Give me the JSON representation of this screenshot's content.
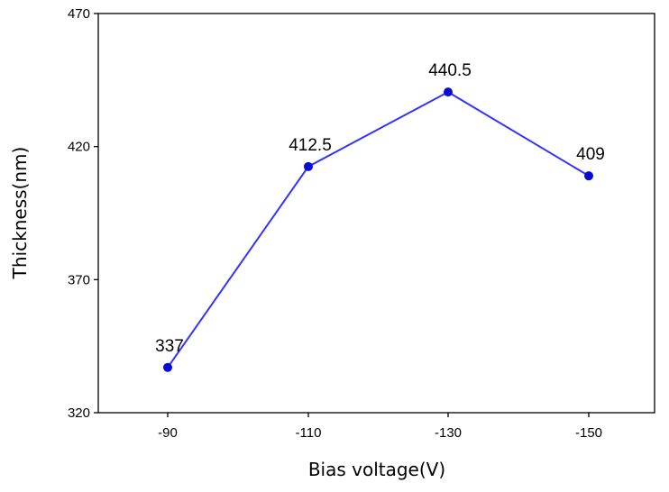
{
  "chart_data": {
    "type": "line",
    "title": "",
    "xlabel": "Bias voltage(V)",
    "ylabel": "Thickness(nm)",
    "categories": [
      "-90",
      "-110",
      "-130",
      "-150"
    ],
    "series": [
      {
        "values": [
          337,
          412.5,
          440.5,
          409
        ],
        "data_labels": [
          "337",
          "412.5",
          "440.5",
          "409"
        ]
      }
    ],
    "ylim": [
      320,
      470
    ],
    "yticks": [
      "320",
      "370",
      "420",
      "470"
    ],
    "grid": false,
    "legend": "none",
    "colors": {
      "line": "#3333ff",
      "marker": "#0a0ad6",
      "axis": "#000000"
    }
  }
}
